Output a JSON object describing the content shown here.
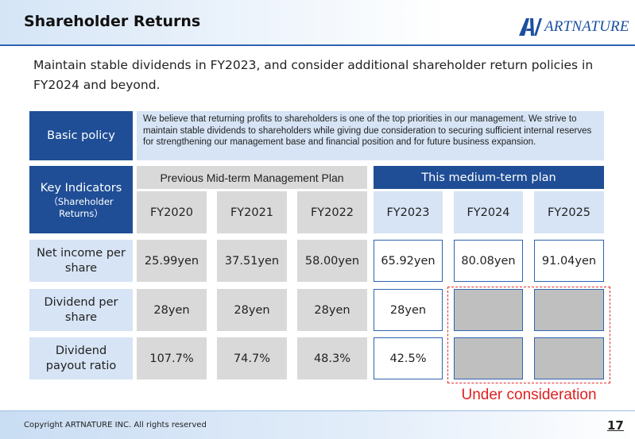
{
  "header": {
    "title": "Shareholder Returns",
    "logo_text": "ARTNATURE"
  },
  "lead_text": "Maintain stable dividends in FY2023, and consider additional shareholder return policies in FY2024 and beyond.",
  "basic_policy": {
    "label": "Basic policy",
    "text": "We believe that returning profits to shareholders is one of the top priorities in our management. We strive to maintain stable dividends to shareholders while giving due consideration to securing sufficient internal reserves for strengthening our management base and financial position and for future business expansion."
  },
  "table": {
    "key_label": "Key Indicators",
    "key_sublabel": "（Shareholder Returns）",
    "previous_plan_label": "Previous Mid-term Management Plan",
    "current_plan_label": "This medium-term plan",
    "years": [
      "FY2020",
      "FY2021",
      "FY2022",
      "FY2023",
      "FY2024",
      "FY2025"
    ],
    "rows": [
      {
        "label": "Net income per share",
        "values": [
          "25.99yen",
          "37.51yen",
          "58.00yen",
          "65.92yen",
          "80.08yen",
          "91.04yen"
        ]
      },
      {
        "label": "Dividend per share",
        "values": [
          "28yen",
          "28yen",
          "28yen",
          "28yen",
          "",
          ""
        ]
      },
      {
        "label": "Dividend payout ratio",
        "values": [
          "107.7%",
          "74.7%",
          "48.3%",
          "42.5%",
          "",
          ""
        ]
      }
    ],
    "under_consideration_label": "Under consideration"
  },
  "footer": {
    "copyright": "Copyright ARTNATURE INC. All rights reserved",
    "page_number": "17"
  },
  "colors": {
    "accent_blue": "#1f4e96",
    "light_blue": "#d6e4f5",
    "grey": "#d9d9d9",
    "red": "#e02020"
  }
}
